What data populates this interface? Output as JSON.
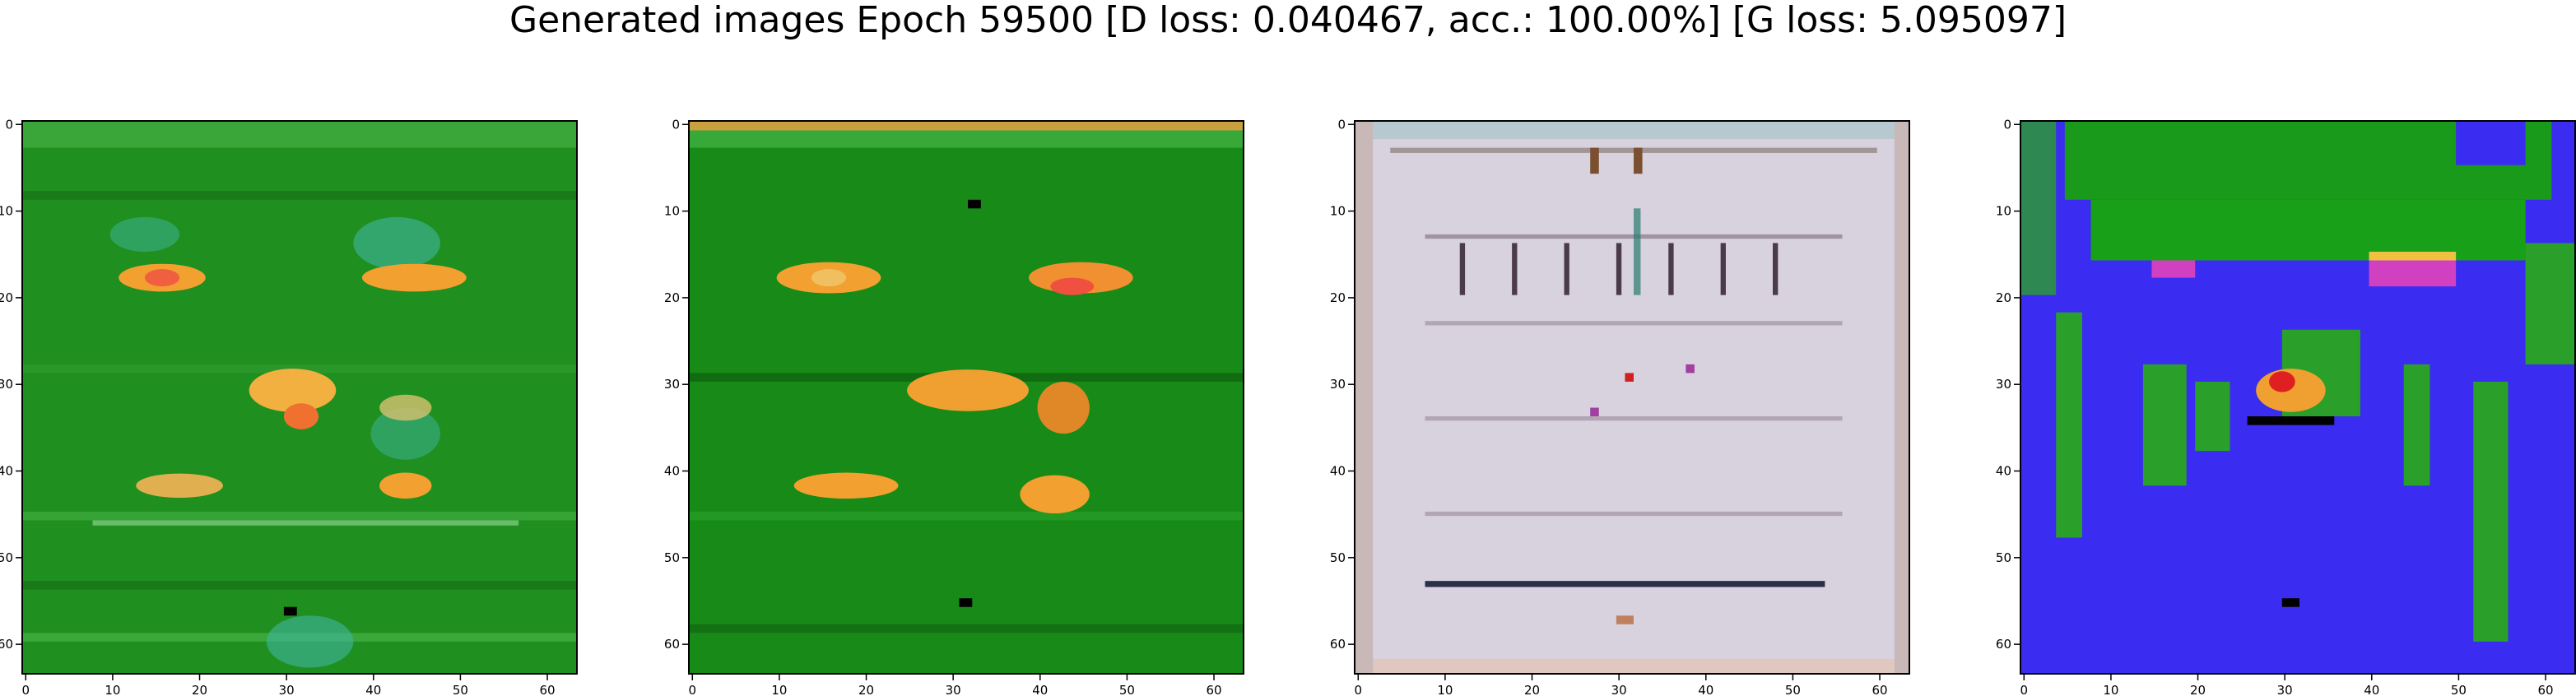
{
  "figure": {
    "title": "Generated images Epoch 59500 [D loss: 0.040467, acc.: 100.00%] [G loss: 5.095097]"
  },
  "chart_data": [
    {
      "type": "heatmap",
      "image_description": "generated 64x64 RGB sample, mostly green with orange blobs",
      "base_color": "#1f8f1f",
      "xlim": [
        -0.5,
        63.5
      ],
      "ylim": [
        63.5,
        -0.5
      ],
      "xticks": [
        0,
        10,
        20,
        30,
        40,
        50,
        60
      ],
      "yticks": [
        0,
        10,
        20,
        30,
        40,
        50,
        60
      ],
      "grid": false
    },
    {
      "type": "heatmap",
      "image_description": "generated 64x64 RGB sample, green with orange/yellow blobs",
      "base_color": "#178a17",
      "xlim": [
        -0.5,
        63.5
      ],
      "ylim": [
        63.5,
        -0.5
      ],
      "xticks": [
        0,
        10,
        20,
        30,
        40,
        50,
        60
      ],
      "yticks": [
        0,
        10,
        20,
        30,
        40,
        50,
        60
      ],
      "grid": false
    },
    {
      "type": "heatmap",
      "image_description": "generated 64x64 RGB sample, pale lilac/white with grid-like dark marks",
      "base_color": "#d8d2de",
      "xlim": [
        -0.5,
        63.5
      ],
      "ylim": [
        63.5,
        -0.5
      ],
      "xticks": [
        0,
        10,
        20,
        30,
        40,
        50,
        60
      ],
      "yticks": [
        0,
        10,
        20,
        30,
        40,
        50,
        60
      ],
      "grid": false
    },
    {
      "type": "heatmap",
      "image_description": "generated 64x64 RGB sample, blue field with green bands and red/yellow blobs",
      "base_color": "#3a2cf0",
      "xlim": [
        -0.5,
        63.5
      ],
      "ylim": [
        63.5,
        -0.5
      ],
      "xticks": [
        0,
        10,
        20,
        30,
        40,
        50,
        60
      ],
      "yticks": [
        0,
        10,
        20,
        30,
        40,
        50,
        60
      ],
      "grid": false
    }
  ]
}
